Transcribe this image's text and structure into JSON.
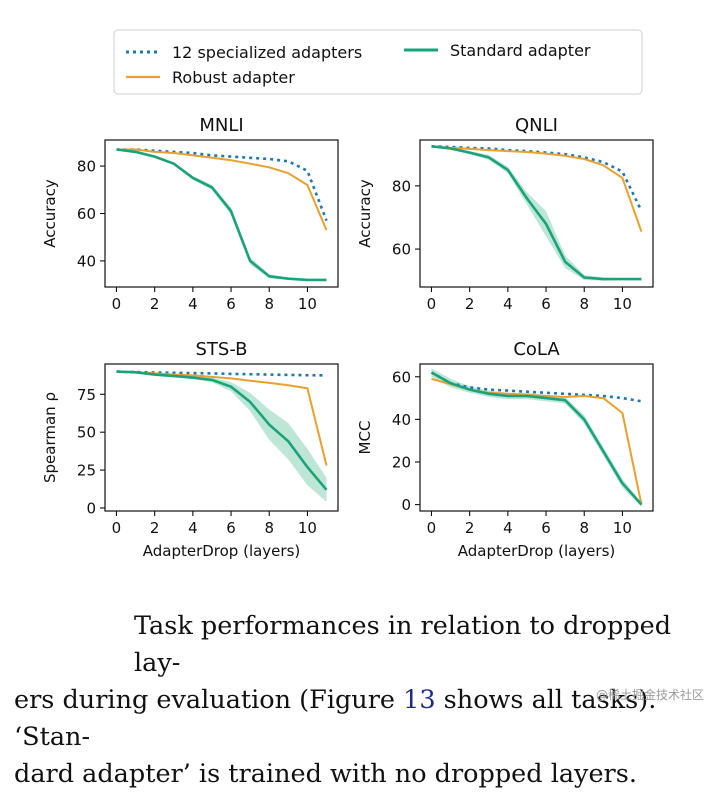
{
  "chart_data": [
    {
      "type": "line",
      "title": "MNLI",
      "ylabel": "Accuracy",
      "xlabel": "",
      "x": [
        0,
        1,
        2,
        3,
        4,
        5,
        6,
        7,
        8,
        9,
        10,
        11
      ],
      "xticks": [
        0,
        2,
        4,
        6,
        8,
        10
      ],
      "xlim": [
        -0.6,
        11.6
      ],
      "yticks": [
        40,
        60,
        80
      ],
      "ylim": [
        29,
        91
      ],
      "series": [
        {
          "name": "12 specialized adapters",
          "values": [
            87,
            87,
            86.5,
            86,
            85.5,
            84.5,
            84,
            83.5,
            83,
            82,
            78,
            57
          ]
        },
        {
          "name": "Robust adapter",
          "values": [
            87,
            87,
            86,
            85.5,
            84.5,
            83.5,
            82.5,
            81,
            79.5,
            77,
            72,
            53
          ]
        },
        {
          "name": "Standard adapter",
          "values": [
            87,
            86,
            84,
            81,
            75,
            71,
            61,
            40,
            33.5,
            32.5,
            32,
            32
          ],
          "band": [
            0,
            0,
            0.5,
            0.5,
            0.8,
            1,
            1.5,
            1.5,
            0.8,
            0.5,
            0.3,
            0.3
          ]
        }
      ]
    },
    {
      "type": "line",
      "title": "QNLI",
      "ylabel": "Accuracy",
      "xlabel": "",
      "x": [
        0,
        1,
        2,
        3,
        4,
        5,
        6,
        7,
        8,
        9,
        10,
        11
      ],
      "xticks": [
        0,
        2,
        4,
        6,
        8,
        10
      ],
      "xlim": [
        -0.6,
        11.6
      ],
      "yticks": [
        60,
        80
      ],
      "ylim": [
        48,
        94.5
      ],
      "series": [
        {
          "name": "12 specialized adapters",
          "values": [
            92.5,
            92.3,
            92,
            91.8,
            91.3,
            91,
            90.5,
            90,
            89,
            87.5,
            84.5,
            72
          ]
        },
        {
          "name": "Robust adapter",
          "values": [
            92.5,
            92,
            91.7,
            91.3,
            91,
            90.7,
            90.2,
            89.5,
            88.5,
            86.5,
            82.5,
            65.5
          ]
        },
        {
          "name": "Standard adapter",
          "values": [
            92.5,
            91.8,
            90.5,
            89,
            85,
            76,
            68,
            56,
            51,
            50.5,
            50.5,
            50.5
          ],
          "band": [
            0,
            0.3,
            0.5,
            0.8,
            1,
            2,
            4,
            2,
            0.8,
            0.5,
            0.3,
            0.3
          ]
        }
      ]
    },
    {
      "type": "line",
      "title": "STS-B",
      "ylabel": "Spearman ρ",
      "xlabel": "AdapterDrop (layers)",
      "x": [
        0,
        1,
        2,
        3,
        4,
        5,
        6,
        7,
        8,
        9,
        10,
        11
      ],
      "xticks": [
        0,
        2,
        4,
        6,
        8,
        10
      ],
      "xlim": [
        -0.6,
        11.6
      ],
      "yticks": [
        0,
        25,
        50,
        75
      ],
      "ylim": [
        -2,
        95
      ],
      "series": [
        {
          "name": "12 specialized adapters",
          "values": [
            90,
            89.7,
            89.4,
            89.2,
            89,
            88.8,
            88.5,
            88.3,
            88,
            87.8,
            87.6,
            87.5
          ]
        },
        {
          "name": "Robust adapter",
          "values": [
            90,
            89.5,
            88.8,
            88,
            87.5,
            86.5,
            85.5,
            84,
            82.5,
            81,
            79,
            28
          ]
        },
        {
          "name": "Standard adapter",
          "values": [
            90,
            89.5,
            88,
            87,
            86,
            84.5,
            80,
            70,
            55,
            44,
            27,
            12
          ],
          "band": [
            0,
            0,
            0.5,
            0.5,
            1,
            1.5,
            3,
            6,
            10,
            12,
            12,
            8
          ]
        }
      ]
    },
    {
      "type": "line",
      "title": "CoLA",
      "ylabel": "MCC",
      "xlabel": "AdapterDrop (layers)",
      "x": [
        0,
        1,
        2,
        3,
        4,
        5,
        6,
        7,
        8,
        9,
        10,
        11
      ],
      "xticks": [
        0,
        2,
        4,
        6,
        8,
        10
      ],
      "xlim": [
        -0.6,
        11.6
      ],
      "yticks": [
        0,
        20,
        40,
        60
      ],
      "ylim": [
        -3,
        66
      ],
      "series": [
        {
          "name": "12 specialized adapters",
          "values": [
            62,
            57,
            55,
            54,
            53.5,
            53,
            52.5,
            52,
            51.5,
            51,
            50,
            48.5
          ]
        },
        {
          "name": "Robust adapter",
          "values": [
            59,
            56.5,
            54,
            52.5,
            52,
            51.5,
            51,
            50.5,
            51,
            50,
            43,
            0
          ]
        },
        {
          "name": "Standard adapter",
          "values": [
            62,
            57,
            54,
            52,
            51,
            51,
            50,
            49,
            40,
            25,
            10,
            0
          ],
          "band": [
            2,
            2,
            1.5,
            1.5,
            1.5,
            1.5,
            1.5,
            1.5,
            2,
            2,
            2,
            1
          ]
        }
      ]
    }
  ],
  "legend": {
    "placement": "top",
    "entries": [
      {
        "label": "12 specialized adapters",
        "color": "#1f77b4",
        "style": "dotted"
      },
      {
        "label": "Standard adapter",
        "color": "#1aa37a",
        "style": "solid"
      },
      {
        "label": "Robust adapter",
        "color": "#e8a02e",
        "style": "solid"
      }
    ]
  },
  "colors": {
    "specialized": "#1f77b4",
    "robust": "#e8a02e",
    "standard": "#1aa37a",
    "standard_band": "#a8ddc9"
  },
  "caption": {
    "line1": "Task performances in relation to dropped lay-",
    "line2_before": "ers during evaluation (Figure ",
    "line2_ref": "13",
    "line2_after": " shows all tasks). ‘Stan-",
    "line3": "dard adapter’ is trained with no dropped layers."
  },
  "watermark": "@稀土掘金技术社区"
}
